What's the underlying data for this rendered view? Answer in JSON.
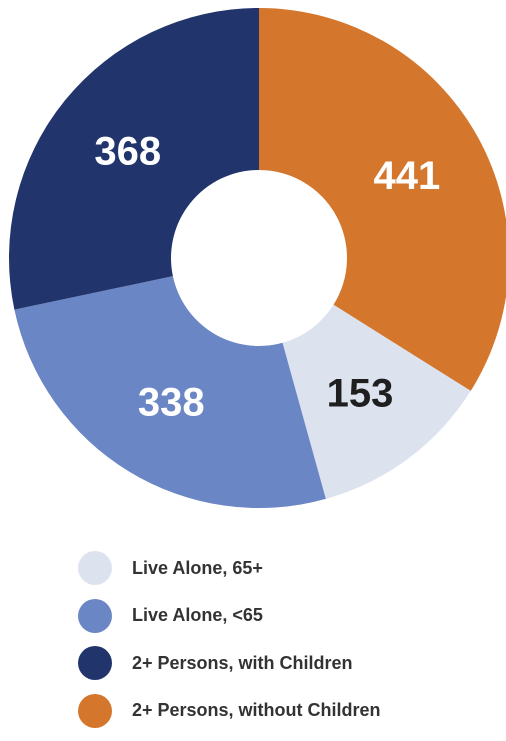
{
  "chart_data": {
    "type": "pie",
    "title": "",
    "series": [
      {
        "label": "2+ Persons, without Children",
        "value": 441,
        "color": "#D4762C",
        "label_color": "#ffffff"
      },
      {
        "label": "Live Alone, 65+",
        "value": 153,
        "color": "#DCE3EF",
        "label_color": "#1F1F1F"
      },
      {
        "label": "Live Alone, <65",
        "value": 338,
        "color": "#6B86C4",
        "label_color": "#ffffff"
      },
      {
        "label": "2+ Persons, with Children",
        "value": 368,
        "color": "#21346B",
        "label_color": "#ffffff"
      }
    ],
    "legend_position": "bottom-left"
  },
  "legend": {
    "items": [
      {
        "label": "Live Alone, 65+",
        "color": "#DCE3EF"
      },
      {
        "label": "Live Alone, <65",
        "color": "#6B86C4"
      },
      {
        "label": "2+ Persons, with Children",
        "color": "#21346B"
      },
      {
        "label": "2+ Persons, without Children",
        "color": "#D4762C"
      }
    ]
  }
}
